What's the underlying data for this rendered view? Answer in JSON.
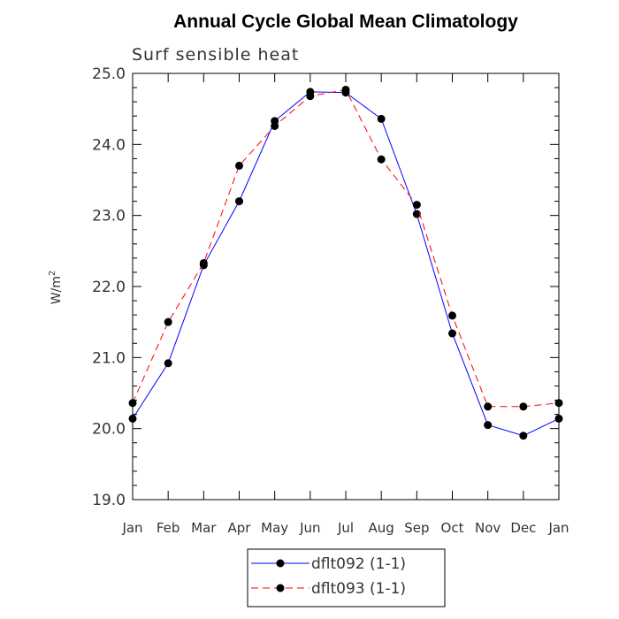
{
  "chart_data": {
    "type": "line",
    "title": "Annual Cycle Global Mean Climatology",
    "subtitle": "Surf sensible heat",
    "ylabel": "W/m",
    "ylabel_superscript": "2",
    "xlabel": "",
    "categories": [
      "Jan",
      "Feb",
      "Mar",
      "Apr",
      "May",
      "Jun",
      "Jul",
      "Aug",
      "Sep",
      "Oct",
      "Nov",
      "Dec",
      "Jan"
    ],
    "ylim": [
      19.0,
      25.0
    ],
    "yticks": [
      "19.0",
      "20.0",
      "21.0",
      "22.0",
      "23.0",
      "24.0",
      "25.0"
    ],
    "grid": false,
    "legend_position": "bottom-center",
    "series": [
      {
        "name": "dflt092 (1-1)",
        "color": "#0000ff",
        "dash": "solid",
        "marker": "filled-circle",
        "values": [
          20.14,
          20.92,
          22.3,
          23.2,
          24.33,
          24.74,
          24.73,
          24.36,
          23.02,
          21.34,
          20.05,
          19.9,
          20.14
        ]
      },
      {
        "name": "dflt093 (1-1)",
        "color": "#ff0000",
        "dash": "dashed",
        "marker": "filled-circle",
        "values": [
          20.36,
          21.5,
          22.33,
          23.7,
          24.26,
          24.68,
          24.77,
          23.79,
          23.15,
          21.59,
          20.31,
          20.31,
          20.36
        ]
      }
    ]
  }
}
